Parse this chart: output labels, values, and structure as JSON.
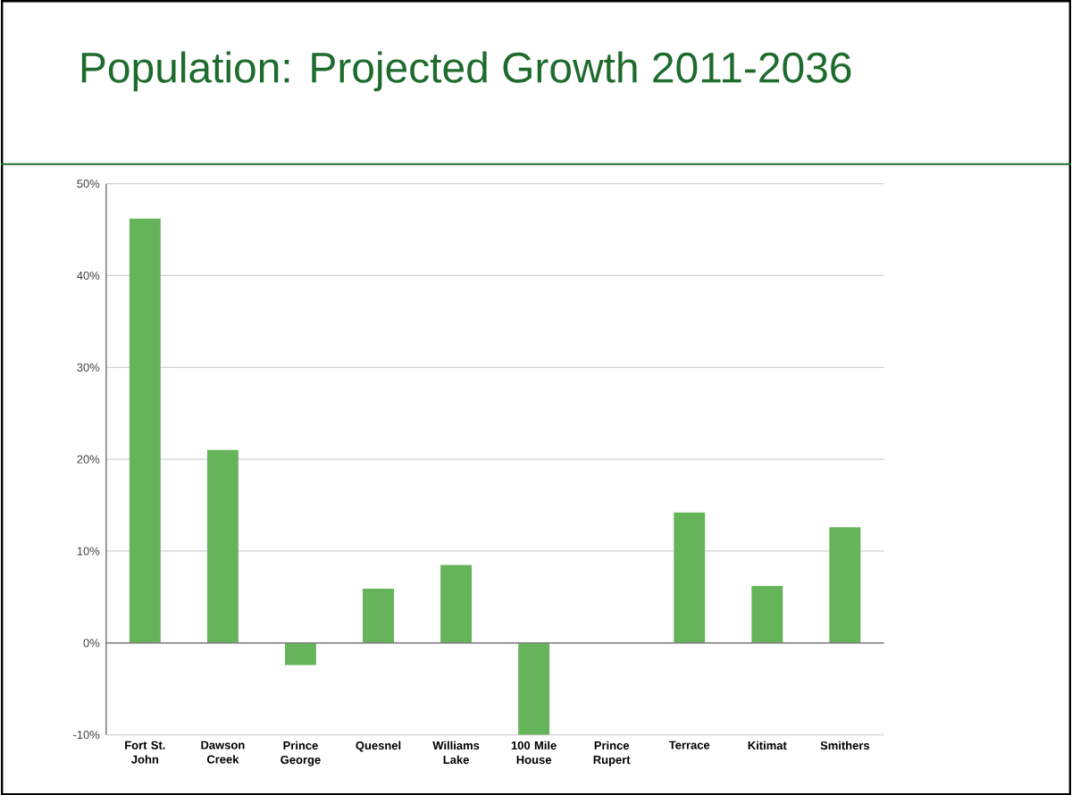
{
  "chart_data": {
    "type": "bar",
    "title": "Population: Projected Growth 2011-2036",
    "categories": [
      "Fort St. John",
      "Dawson Creek",
      "Prince George",
      "Quesnel",
      "Williams Lake",
      "100 Mile House",
      "Prince Rupert",
      "Terrace",
      "Kitimat",
      "Smithers"
    ],
    "values": [
      46.2,
      21.0,
      -2.4,
      5.9,
      8.5,
      -10,
      0,
      14.2,
      6.2,
      12.6
    ],
    "color": "#66b45a",
    "ylim": [
      -10,
      50
    ],
    "yticks": [
      {
        "value": -10,
        "label": "-10%"
      },
      {
        "value": 0,
        "label": "0%"
      },
      {
        "value": 10,
        "label": "10%"
      },
      {
        "value": 20,
        "label": "20%"
      },
      {
        "value": 30,
        "label": "30%"
      },
      {
        "value": 40,
        "label": "40%"
      },
      {
        "value": 50,
        "label": "50%"
      }
    ],
    "grid": "y"
  }
}
